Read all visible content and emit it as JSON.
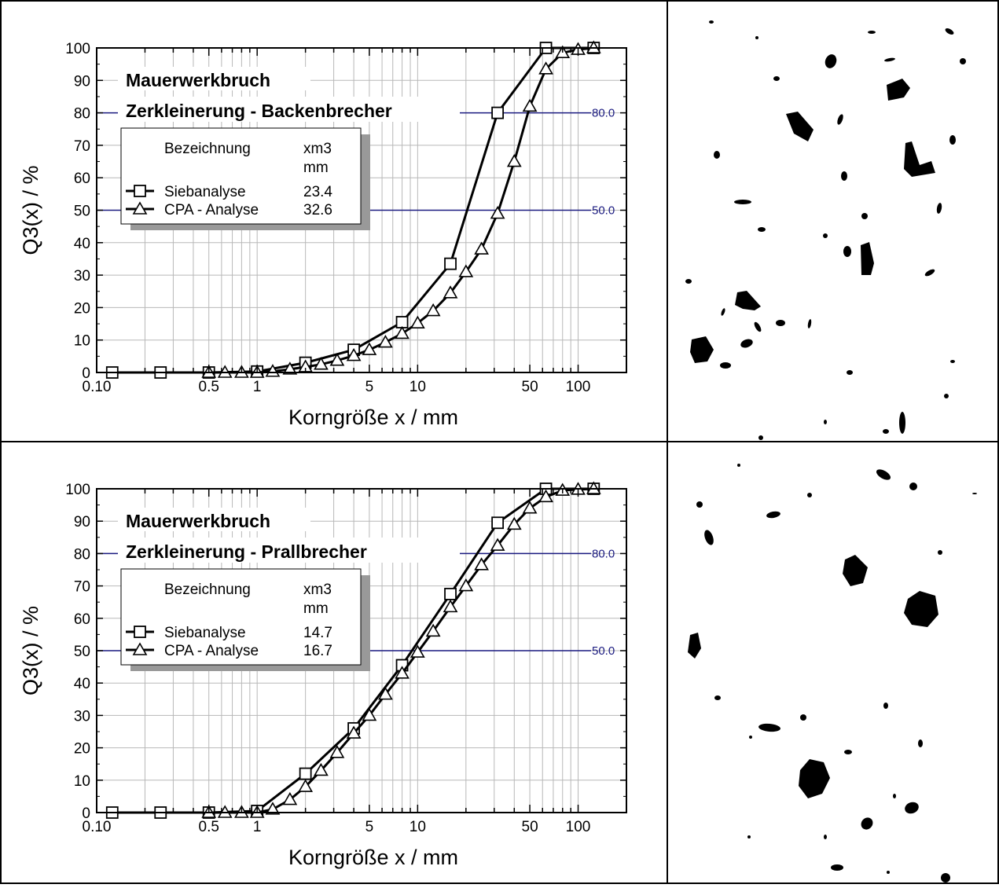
{
  "panels": [
    {
      "chart_data": {
        "type": "line",
        "title": "Mauerwerkbruch",
        "subtitle": "Zerkleinerung - Backenbrecher",
        "xlabel": "Korngröße x / mm",
        "ylabel": "Q3(x) / %",
        "x_scale": "log",
        "xlim": [
          0.1,
          200
        ],
        "ylim": [
          0,
          100
        ],
        "x_ticks": [
          "0.10",
          "0.5",
          "1",
          "5",
          "10",
          "50",
          "100"
        ],
        "y_ticks": [
          "0",
          "10",
          "20",
          "30",
          "40",
          "50",
          "60",
          "70",
          "80",
          "90",
          "100"
        ],
        "grid": true,
        "legend_position": "upper-left",
        "legend": {
          "header_name": "Bezeichnung",
          "header_value": "xm3",
          "header_unit": "mm"
        },
        "reference_lines": [
          {
            "y": 80,
            "label": "80.0"
          },
          {
            "y": 50,
            "label": "50.0"
          }
        ],
        "series": [
          {
            "name": "Siebanalyse",
            "xm3": "23.4",
            "marker": "square",
            "x": [
              0.125,
              0.25,
              0.5,
              1,
              2,
              4,
              8,
              16,
              31.5,
              63,
              125
            ],
            "y": [
              0,
              0,
              0,
              0.3,
              3,
              7,
              15.5,
              33.5,
              80,
              100,
              100
            ]
          },
          {
            "name": "CPA - Analyse",
            "xm3": "32.6",
            "marker": "triangle",
            "x": [
              0.5,
              0.63,
              0.8,
              1,
              1.25,
              1.6,
              2,
              2.5,
              3.15,
              4,
              5,
              6.3,
              8,
              10,
              12.5,
              16,
              20,
              25,
              31.5,
              40,
              50,
              63,
              80,
              100,
              125
            ],
            "y": [
              0,
              0,
              0,
              0,
              0.3,
              1,
              1.7,
              2.5,
              3.7,
              5.2,
              7,
              9.3,
              12,
              15.2,
              19,
              24.5,
              31,
              38,
              49,
              65,
              82,
              93.5,
              98.5,
              99.5,
              100
            ]
          }
        ]
      }
    },
    {
      "chart_data": {
        "type": "line",
        "title": "Mauerwerkbruch",
        "subtitle": "Zerkleinerung - Prallbrecher",
        "xlabel": "Korngröße x / mm",
        "ylabel": "Q3(x) / %",
        "x_scale": "log",
        "xlim": [
          0.1,
          200
        ],
        "ylim": [
          0,
          100
        ],
        "x_ticks": [
          "0.10",
          "0.5",
          "1",
          "5",
          "10",
          "50",
          "100"
        ],
        "y_ticks": [
          "0",
          "10",
          "20",
          "30",
          "40",
          "50",
          "60",
          "70",
          "80",
          "90",
          "100"
        ],
        "grid": true,
        "legend_position": "upper-left",
        "legend": {
          "header_name": "Bezeichnung",
          "header_value": "xm3",
          "header_unit": "mm"
        },
        "reference_lines": [
          {
            "y": 80,
            "label": "80.0"
          },
          {
            "y": 50,
            "label": "50.0"
          }
        ],
        "series": [
          {
            "name": "Siebanalyse",
            "xm3": "14.7",
            "marker": "square",
            "x": [
              0.125,
              0.25,
              0.5,
              1,
              2,
              4,
              8,
              16,
              31.5,
              63,
              125
            ],
            "y": [
              0,
              0,
              0,
              0.5,
              12,
              26,
              45.5,
              67.5,
              89.5,
              100,
              100
            ]
          },
          {
            "name": "CPA - Analyse",
            "xm3": "16.7",
            "marker": "triangle",
            "x": [
              0.5,
              0.63,
              0.8,
              1,
              1.25,
              1.6,
              2,
              2.5,
              3.15,
              4,
              5,
              6.3,
              8,
              10,
              12.5,
              16,
              20,
              25,
              31.5,
              40,
              50,
              63,
              80,
              100,
              125
            ],
            "y": [
              0,
              0,
              0,
              0,
              1,
              4,
              8,
              13,
              18.5,
              24.5,
              30,
              36.5,
              43,
              49.5,
              56,
              63.5,
              70,
              76.5,
              82.5,
              89,
              94,
              97.5,
              99.5,
              99.8,
              100
            ]
          }
        ]
      }
    }
  ],
  "colors": {
    "curve": "#000000",
    "reference_line": "#1a1a80",
    "grid": "#b8b8b8",
    "legend_shadow": "#999999"
  }
}
